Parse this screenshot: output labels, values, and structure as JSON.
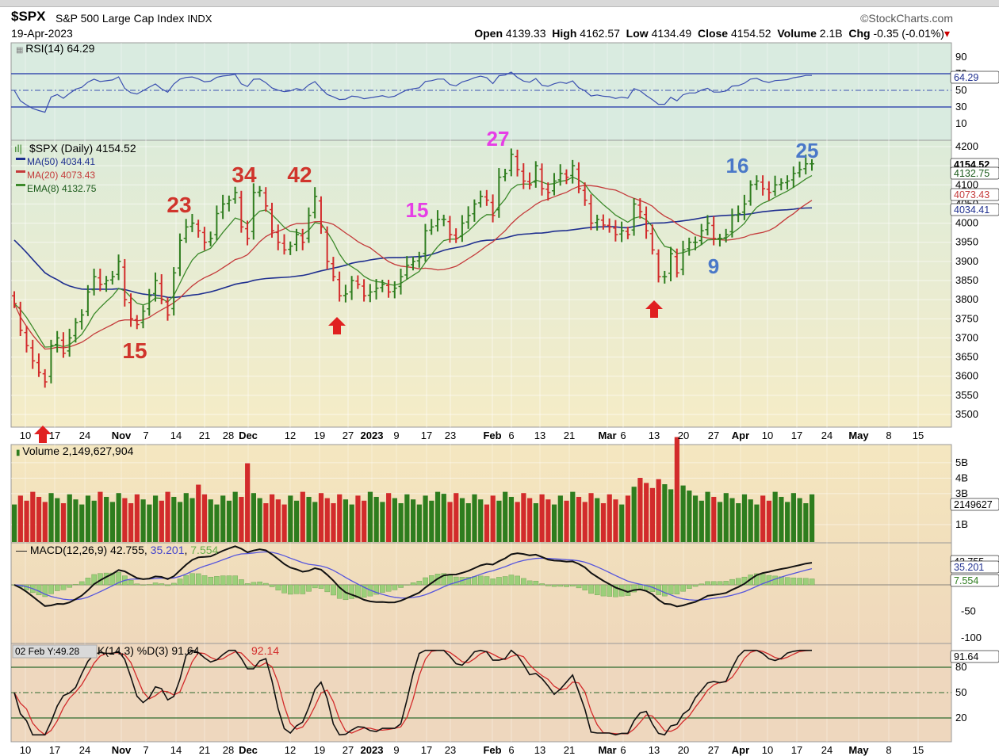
{
  "header": {
    "symbol": "$SPX",
    "name": "S&P 500 Large Cap Index",
    "exchange": "INDX",
    "logo": "©StockCharts.com",
    "date": "19-Apr-2023",
    "open_label": "Open",
    "open": "4139.33",
    "high_label": "High",
    "high": "4162.57",
    "low_label": "Low",
    "low": "4134.49",
    "close_label": "Close",
    "close": "4154.52",
    "volume_label": "Volume",
    "volume": "2.1B",
    "chg_label": "Chg",
    "chg": "-0.35 (-0.01%)",
    "chg_arrow": "▾"
  },
  "rsi": {
    "title": "RSI(14) 64.29",
    "current": "64.29",
    "ticks": [
      "90",
      "70",
      "50",
      "30",
      "10"
    ]
  },
  "price": {
    "legend": [
      "$SPX (Daily) 4154.52",
      "MA(50) 4034.41",
      "MA(20) 4073.43",
      "EMA(8) 4132.75"
    ],
    "badges": [
      "4154.52",
      "4132.75",
      "4073.43",
      "4034.41"
    ],
    "ticks": [
      "4200",
      "4150",
      "4100",
      "4050",
      "4000",
      "3950",
      "3900",
      "3850",
      "3800",
      "3750",
      "3700",
      "3650",
      "3600",
      "3550",
      "3500"
    ]
  },
  "x_labels": [
    "10",
    "17",
    "24",
    "Nov",
    "7",
    "14",
    "21",
    "28",
    "Dec",
    "12",
    "19",
    "27",
    "2023",
    "9",
    "17",
    "23",
    "Feb",
    "6",
    "13",
    "21",
    "Mar",
    "6",
    "13",
    "20",
    "27",
    "Apr",
    "10",
    "17",
    "24",
    "May",
    "8",
    "15"
  ],
  "volume": {
    "title": "Volume 2,149,627,904",
    "badge": "2149627",
    "ticks": [
      "5B",
      "4B",
      "3B",
      "1B"
    ]
  },
  "macd": {
    "title_prefix": "MACD(12,26,9)",
    "v1": "42.755",
    "v2": "35.201",
    "v3": "7.554",
    "badges": [
      "42.755",
      "35.201",
      "7.554"
    ],
    "ticks": [
      "-50",
      "-100"
    ]
  },
  "stoch": {
    "cursor": "02 Feb Y:49.28",
    "title": "K(14,3) %D(3) 91.64,",
    "title_d": "92.14",
    "badge": "91.64",
    "ticks": [
      "80",
      "50",
      "20"
    ]
  },
  "annotations": [
    {
      "text": "15",
      "color": "#d0342c"
    },
    {
      "text": "23",
      "color": "#d0342c"
    },
    {
      "text": "34",
      "color": "#d0342c"
    },
    {
      "text": "42",
      "color": "#d0342c"
    },
    {
      "text": "15",
      "color": "#e63ee6"
    },
    {
      "text": "27",
      "color": "#e63ee6"
    },
    {
      "text": "16",
      "color": "#4a78c8"
    },
    {
      "text": "25",
      "color": "#4a78c8"
    },
    {
      "text": "9",
      "color": "#4a78c8"
    }
  ],
  "colors": {
    "up": "#2e7d1e",
    "down": "#d22b2b",
    "ma50": "#1f2f8f",
    "ma20": "#c43a3a",
    "ema8": "#3c8a2b",
    "arrow": "#e02020"
  },
  "chart_data": {
    "type": "line",
    "title": "$SPX S&P 500 Large Cap Index",
    "x_range": [
      "2022-10-10",
      "2023-04-19"
    ],
    "ylim": [
      3480,
      4220
    ],
    "series": [
      {
        "name": "$SPX (Daily)",
        "values": [
          3790,
          3720,
          3680,
          3640,
          3610,
          3585,
          3680,
          3700,
          3660,
          3700,
          3740,
          3760,
          3820,
          3860,
          3840,
          3850,
          3860,
          3900,
          3800,
          3750,
          3735,
          3770,
          3810,
          3850,
          3800,
          3760,
          3870,
          3955,
          3990,
          4000,
          3980,
          3950,
          3960,
          4025,
          4050,
          4060,
          4080,
          3990,
          3960,
          4080,
          4085,
          4045,
          3980,
          3950,
          3930,
          3940,
          3970,
          3950,
          4020,
          4070,
          3990,
          3900,
          3860,
          3810,
          3815,
          3850,
          3840,
          3810,
          3820,
          3830,
          3840,
          3820,
          3830,
          3860,
          3890,
          3900,
          3910,
          3980,
          3990,
          4010,
          4010,
          3970,
          3960,
          4000,
          4020,
          4050,
          4070,
          4060,
          4020,
          4120,
          4130,
          4180,
          4140,
          4110,
          4100,
          4150,
          4090,
          4080,
          4110,
          4130,
          4120,
          4150,
          4090,
          4060,
          4000,
          4010,
          3995,
          3990,
          3970,
          3980,
          3970,
          4050,
          4030,
          3980,
          3930,
          3860,
          3860,
          3920,
          3870,
          3930,
          3950,
          3950,
          3980,
          4000,
          3960,
          3960,
          3970,
          4020,
          4025,
          4050,
          4100,
          4110,
          4090,
          4080,
          4100,
          4105,
          4110,
          4130,
          4140,
          4155,
          4155
        ]
      },
      {
        "name": "MA(50)",
        "values": [
          4034.41
        ]
      },
      {
        "name": "MA(20)",
        "values": [
          4073.43
        ]
      },
      {
        "name": "EMA(8)",
        "values": [
          4132.75
        ]
      }
    ]
  }
}
